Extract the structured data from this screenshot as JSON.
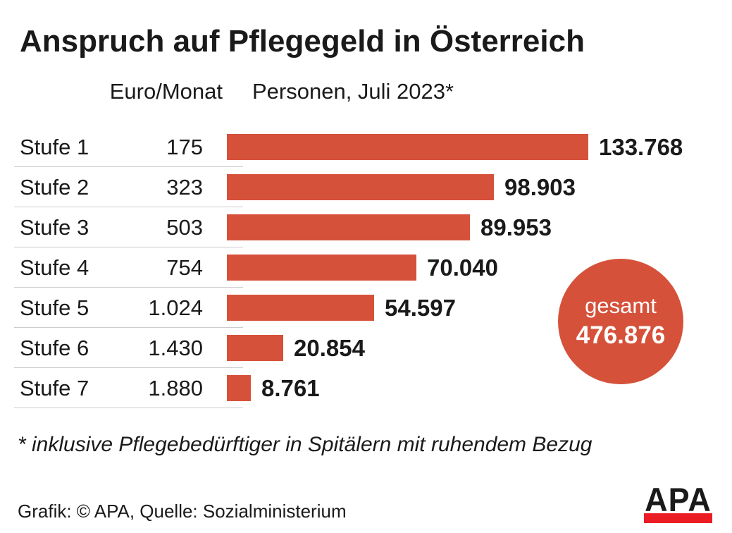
{
  "title": "Anspruch auf Pflegegeld in Österreich",
  "columns": {
    "euro": "Euro/Monat",
    "personen": "Personen, Juli 2023*"
  },
  "rows": [
    {
      "label": "Stufe 1",
      "euro": "175",
      "personen": "133.768",
      "value": 133768
    },
    {
      "label": "Stufe 2",
      "euro": "323",
      "personen": "98.903",
      "value": 98903
    },
    {
      "label": "Stufe 3",
      "euro": "503",
      "personen": "89.953",
      "value": 89953
    },
    {
      "label": "Stufe 4",
      "euro": "754",
      "personen": "70.040",
      "value": 70040
    },
    {
      "label": "Stufe 5",
      "euro": "1.024",
      "personen": "54.597",
      "value": 54597
    },
    {
      "label": "Stufe 6",
      "euro": "1.430",
      "personen": "20.854",
      "value": 20854
    },
    {
      "label": "Stufe 7",
      "euro": "1.880",
      "personen": "8.761",
      "value": 8761
    }
  ],
  "total": {
    "label": "gesamt",
    "value": "476.876"
  },
  "footnote": "* inklusive Pflegebedürftiger in Spitälern mit ruhendem Bezug",
  "credit": "Grafik: © APA, Quelle: Sozialministerium",
  "logo": {
    "text": "APA"
  },
  "colors": {
    "bar": "#d6513a",
    "logo_red": "#ec1c24",
    "divider": "#cccccc",
    "text": "#1a1a1a",
    "circle_text": "#ffffff"
  },
  "chart_data": {
    "type": "bar",
    "orientation": "horizontal",
    "title": "Anspruch auf Pflegegeld in Österreich",
    "categories": [
      "Stufe 1",
      "Stufe 2",
      "Stufe 3",
      "Stufe 4",
      "Stufe 5",
      "Stufe 6",
      "Stufe 7"
    ],
    "series": [
      {
        "name": "Euro/Monat",
        "values": [
          175,
          323,
          503,
          754,
          1024,
          1430,
          1880
        ]
      },
      {
        "name": "Personen, Juli 2023*",
        "values": [
          133768,
          98903,
          89953,
          70040,
          54597,
          20854,
          8761
        ]
      }
    ],
    "data_labels": [
      "133.768",
      "98.903",
      "89.953",
      "70.040",
      "54.597",
      "20.854",
      "8.761"
    ],
    "total": 476876,
    "xlim": [
      0,
      133768
    ],
    "grid": false,
    "legend": false,
    "annotations": [
      "gesamt 476.876",
      "* inklusive Pflegebedürftiger in Spitälern mit ruhendem Bezug",
      "Grafik: © APA, Quelle: Sozialministerium"
    ],
    "bar_color": "#d6513a"
  }
}
